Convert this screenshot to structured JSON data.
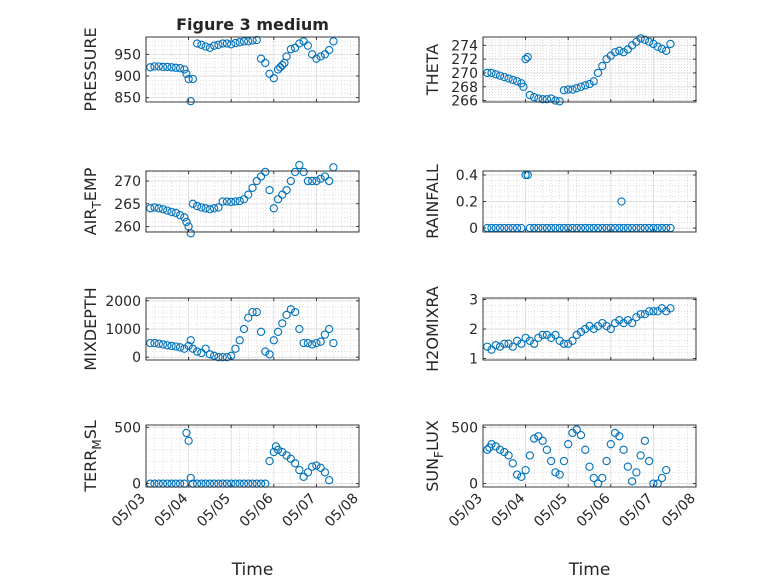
{
  "figure": {
    "title": "Figure 3 medium",
    "marker_color": "#0072BD",
    "grid_color": "#c8c8c8",
    "axis_color": "#262626"
  },
  "chart_data": [
    {
      "id": "pressure",
      "type": "scatter",
      "title": "Figure 3 medium",
      "ylabel_base": "PRESSURE",
      "ylabel_sub": "",
      "ylabel_tail": "",
      "ylim": [
        840,
        990
      ],
      "yticks": [
        850,
        900,
        950
      ],
      "xlim": [
        0,
        5
      ],
      "xticks": [],
      "x": [
        0.1,
        0.2,
        0.3,
        0.4,
        0.5,
        0.6,
        0.7,
        0.8,
        0.9,
        0.95,
        1.0,
        1.05,
        1.1,
        1.2,
        1.3,
        1.4,
        1.5,
        1.6,
        1.7,
        1.8,
        1.9,
        2.0,
        2.1,
        2.2,
        2.3,
        2.4,
        2.5,
        2.6,
        2.7,
        2.8,
        2.9,
        3.0,
        3.1,
        3.15,
        3.2,
        3.25,
        3.3,
        3.4,
        3.5,
        3.6,
        3.7,
        3.8,
        3.9,
        4.0,
        4.1,
        4.2,
        4.3,
        4.4
      ],
      "y": [
        920,
        922,
        922,
        921,
        921,
        920,
        919,
        918,
        915,
        905,
        893,
        842,
        893,
        975,
        972,
        968,
        965,
        970,
        972,
        975,
        975,
        973,
        976,
        978,
        980,
        980,
        982,
        983,
        940,
        930,
        905,
        895,
        915,
        920,
        925,
        930,
        945,
        962,
        965,
        975,
        980,
        970,
        950,
        940,
        945,
        950,
        960,
        980
      ]
    },
    {
      "id": "theta",
      "type": "scatter",
      "title": "",
      "ylabel_base": "THETA",
      "ylabel_sub": "",
      "ylabel_tail": "",
      "ylim": [
        265.8,
        275.2
      ],
      "yticks": [
        266,
        268,
        270,
        272,
        274
      ],
      "xlim": [
        0,
        5
      ],
      "xticks": [],
      "x": [
        0.1,
        0.2,
        0.3,
        0.4,
        0.5,
        0.6,
        0.7,
        0.8,
        0.9,
        0.95,
        1.0,
        1.05,
        1.1,
        1.2,
        1.3,
        1.4,
        1.5,
        1.6,
        1.7,
        1.8,
        1.9,
        2.0,
        2.1,
        2.2,
        2.3,
        2.4,
        2.5,
        2.6,
        2.7,
        2.8,
        2.9,
        3.0,
        3.1,
        3.2,
        3.3,
        3.4,
        3.5,
        3.6,
        3.7,
        3.8,
        3.9,
        4.0,
        4.1,
        4.2,
        4.3,
        4.4
      ],
      "y": [
        270,
        270,
        269.8,
        269.6,
        269.4,
        269.2,
        269,
        268.8,
        268.5,
        268,
        272,
        272.3,
        266.8,
        266.5,
        266.3,
        266.2,
        266.2,
        266.3,
        266,
        265.9,
        267.5,
        267.6,
        267.6,
        267.8,
        268,
        268.2,
        268.4,
        268.8,
        270,
        271,
        272,
        272.5,
        273,
        273.2,
        273,
        273.4,
        274,
        274.5,
        275,
        274.8,
        274.5,
        274.2,
        273.8,
        273.5,
        273.2,
        274.2
      ]
    },
    {
      "id": "air_temp",
      "type": "scatter",
      "title": "",
      "ylabel_base": "AIR",
      "ylabel_sub": "T",
      "ylabel_tail": "EMP",
      "ylim": [
        258.8,
        272.2
      ],
      "yticks": [
        260,
        265,
        270
      ],
      "xlim": [
        0,
        5
      ],
      "xticks": [],
      "x": [
        0.1,
        0.2,
        0.3,
        0.4,
        0.5,
        0.6,
        0.7,
        0.8,
        0.9,
        0.95,
        1.0,
        1.05,
        1.1,
        1.2,
        1.3,
        1.4,
        1.5,
        1.6,
        1.7,
        1.8,
        1.9,
        2.0,
        2.1,
        2.2,
        2.3,
        2.4,
        2.5,
        2.6,
        2.7,
        2.8,
        2.9,
        3.0,
        3.1,
        3.2,
        3.3,
        3.4,
        3.5,
        3.6,
        3.7,
        3.8,
        3.9,
        4.0,
        4.1,
        4.2,
        4.3,
        4.4
      ],
      "y": [
        264,
        264.2,
        264,
        263.8,
        263.5,
        263.2,
        263,
        262.5,
        262,
        261,
        260,
        258.5,
        265,
        264.5,
        264.2,
        264,
        263.8,
        264,
        264.2,
        265.5,
        265.5,
        265.4,
        265.5,
        265.6,
        266,
        267,
        268.5,
        270,
        271,
        272,
        268,
        264,
        266,
        267,
        268,
        270,
        272,
        273.5,
        272,
        270,
        270,
        270,
        270.5,
        271,
        270,
        273
      ]
    },
    {
      "id": "rainfall",
      "type": "scatter",
      "title": "",
      "ylabel_base": "RAINFALL",
      "ylabel_sub": "",
      "ylabel_tail": "",
      "ylim": [
        -0.03,
        0.43
      ],
      "yticks": [
        0,
        0.2,
        0.4
      ],
      "xlim": [
        0,
        5
      ],
      "xticks": [],
      "x": [
        0.1,
        0.2,
        0.3,
        0.4,
        0.5,
        0.6,
        0.7,
        0.8,
        0.9,
        1.0,
        1.05,
        1.1,
        1.2,
        1.3,
        1.4,
        1.5,
        1.6,
        1.7,
        1.8,
        1.9,
        2.0,
        2.1,
        2.2,
        2.3,
        2.4,
        2.5,
        2.6,
        2.7,
        2.8,
        2.9,
        3.0,
        3.1,
        3.2,
        3.25,
        3.3,
        3.4,
        3.5,
        3.6,
        3.7,
        3.8,
        3.9,
        4.0,
        4.1,
        4.2,
        4.3,
        4.4
      ],
      "y": [
        0,
        0,
        0,
        0,
        0,
        0,
        0,
        0,
        0,
        0.4,
        0.4,
        0,
        0,
        0,
        0,
        0,
        0,
        0,
        0,
        0,
        0,
        0,
        0,
        0,
        0,
        0,
        0,
        0,
        0,
        0,
        0,
        0,
        0,
        0.2,
        0,
        0,
        0,
        0,
        0,
        0,
        0,
        0,
        0,
        0,
        0,
        0
      ]
    },
    {
      "id": "mixdepth",
      "type": "scatter",
      "title": "",
      "ylabel_base": "MIXDEPTH",
      "ylabel_sub": "",
      "ylabel_tail": "",
      "ylim": [
        -100,
        2100
      ],
      "yticks": [
        0,
        1000,
        2000
      ],
      "xlim": [
        0,
        5
      ],
      "xticks": [],
      "x": [
        0.1,
        0.2,
        0.3,
        0.4,
        0.5,
        0.6,
        0.7,
        0.8,
        0.9,
        1.0,
        1.05,
        1.1,
        1.2,
        1.3,
        1.4,
        1.5,
        1.6,
        1.7,
        1.8,
        1.9,
        2.0,
        2.1,
        2.2,
        2.3,
        2.4,
        2.5,
        2.6,
        2.7,
        2.8,
        2.9,
        3.0,
        3.1,
        3.2,
        3.3,
        3.4,
        3.5,
        3.6,
        3.7,
        3.8,
        3.9,
        4.0,
        4.1,
        4.2,
        4.3,
        4.4
      ],
      "y": [
        500,
        500,
        480,
        450,
        420,
        400,
        380,
        350,
        300,
        400,
        600,
        300,
        200,
        150,
        300,
        100,
        50,
        0,
        0,
        0,
        50,
        300,
        600,
        1000,
        1400,
        1600,
        1600,
        900,
        200,
        100,
        600,
        900,
        1200,
        1500,
        1700,
        1600,
        1000,
        500,
        500,
        450,
        500,
        550,
        800,
        1000,
        500
      ]
    },
    {
      "id": "h2omixra",
      "type": "scatter",
      "title": "",
      "ylabel_base": "H2OMIXRA",
      "ylabel_sub": "",
      "ylabel_tail": "",
      "ylim": [
        0.95,
        3.05
      ],
      "yticks": [
        1,
        2,
        3
      ],
      "xlim": [
        0,
        5
      ],
      "xticks": [],
      "x": [
        0.1,
        0.2,
        0.3,
        0.4,
        0.5,
        0.6,
        0.7,
        0.8,
        0.9,
        1.0,
        1.1,
        1.2,
        1.3,
        1.4,
        1.5,
        1.6,
        1.7,
        1.8,
        1.9,
        2.0,
        2.1,
        2.2,
        2.3,
        2.4,
        2.5,
        2.6,
        2.7,
        2.8,
        2.9,
        3.0,
        3.1,
        3.2,
        3.3,
        3.4,
        3.5,
        3.6,
        3.7,
        3.8,
        3.9,
        4.0,
        4.1,
        4.2,
        4.3,
        4.4
      ],
      "y": [
        1.4,
        1.3,
        1.45,
        1.4,
        1.5,
        1.5,
        1.4,
        1.6,
        1.5,
        1.7,
        1.6,
        1.5,
        1.7,
        1.8,
        1.8,
        1.7,
        1.8,
        1.6,
        1.5,
        1.5,
        1.6,
        1.8,
        1.9,
        2.0,
        2.1,
        2.0,
        2.1,
        2.2,
        2.1,
        2.0,
        2.2,
        2.3,
        2.2,
        2.3,
        2.2,
        2.4,
        2.5,
        2.5,
        2.6,
        2.6,
        2.6,
        2.7,
        2.6,
        2.7
      ]
    },
    {
      "id": "terr_msl",
      "type": "scatter",
      "title": "",
      "ylabel_base": "TERR",
      "ylabel_sub": "M",
      "ylabel_tail": "SL",
      "ylim": [
        -30,
        520
      ],
      "yticks": [
        0,
        500
      ],
      "xlim": [
        0,
        5
      ],
      "xticks": [
        "05/03",
        "05/04",
        "05/05",
        "05/06",
        "05/07",
        "05/08"
      ],
      "xlabel": "Time",
      "x": [
        0.1,
        0.2,
        0.3,
        0.4,
        0.5,
        0.6,
        0.7,
        0.8,
        0.9,
        0.95,
        1.0,
        1.05,
        1.1,
        1.2,
        1.3,
        1.4,
        1.5,
        1.6,
        1.7,
        1.8,
        1.9,
        2.0,
        2.1,
        2.2,
        2.3,
        2.4,
        2.5,
        2.6,
        2.7,
        2.8,
        2.9,
        3.0,
        3.05,
        3.1,
        3.2,
        3.3,
        3.4,
        3.5,
        3.6,
        3.7,
        3.8,
        3.9,
        4.0,
        4.1,
        4.2,
        4.3
      ],
      "y": [
        0,
        0,
        0,
        0,
        0,
        0,
        0,
        0,
        0,
        450,
        380,
        50,
        0,
        0,
        0,
        0,
        0,
        0,
        0,
        0,
        0,
        0,
        0,
        0,
        0,
        0,
        0,
        0,
        0,
        0,
        200,
        280,
        330,
        300,
        280,
        250,
        220,
        180,
        120,
        60,
        100,
        150,
        160,
        140,
        100,
        30
      ]
    },
    {
      "id": "sun_flux",
      "type": "scatter",
      "title": "",
      "ylabel_base": "SUN",
      "ylabel_sub": "F",
      "ylabel_tail": "LUX",
      "ylim": [
        -30,
        520
      ],
      "yticks": [
        0,
        500
      ],
      "xlim": [
        0,
        5
      ],
      "xticks": [
        "05/03",
        "05/04",
        "05/05",
        "05/06",
        "05/07",
        "05/08"
      ],
      "xlabel": "Time",
      "x": [
        0.1,
        0.15,
        0.2,
        0.3,
        0.4,
        0.5,
        0.6,
        0.7,
        0.8,
        0.9,
        1.0,
        1.1,
        1.2,
        1.3,
        1.4,
        1.5,
        1.6,
        1.7,
        1.8,
        1.9,
        2.0,
        2.1,
        2.2,
        2.3,
        2.4,
        2.5,
        2.6,
        2.7,
        2.8,
        2.9,
        3.0,
        3.1,
        3.2,
        3.3,
        3.4,
        3.5,
        3.6,
        3.7,
        3.8,
        3.9,
        4.0,
        4.1,
        4.2,
        4.3
      ],
      "y": [
        300,
        320,
        350,
        330,
        300,
        280,
        250,
        180,
        80,
        60,
        120,
        250,
        400,
        420,
        380,
        300,
        200,
        100,
        80,
        200,
        350,
        450,
        480,
        430,
        300,
        150,
        50,
        0,
        50,
        200,
        350,
        450,
        420,
        300,
        150,
        20,
        100,
        250,
        380,
        200,
        0,
        0,
        50,
        120
      ]
    }
  ]
}
